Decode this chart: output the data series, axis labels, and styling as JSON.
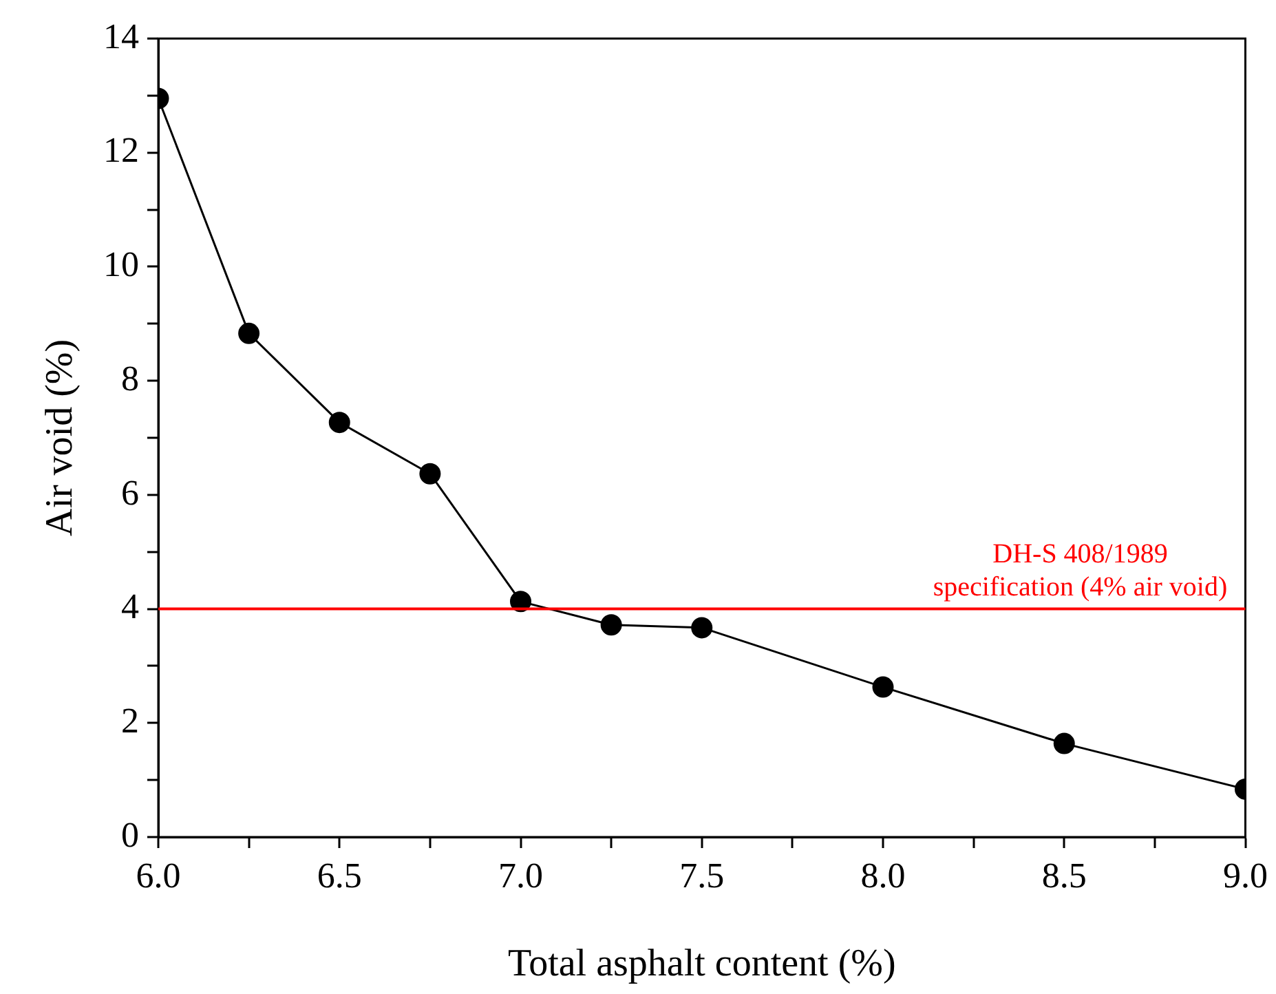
{
  "chart_data": {
    "type": "line",
    "xlabel": "Total asphalt content (%)",
    "ylabel": "Air void (%)",
    "x": [
      6.0,
      6.25,
      6.5,
      6.75,
      7.0,
      7.25,
      7.5,
      8.0,
      8.5,
      9.0
    ],
    "series": [
      {
        "color": "#000000",
        "values": [
          12.95,
          8.83,
          7.27,
          6.37,
          4.13,
          3.72,
          3.67,
          2.63,
          1.64,
          0.84
        ]
      }
    ],
    "xlim": [
      6.0,
      9.0
    ],
    "xticks": [
      {
        "value": 6,
        "label": "6.0"
      },
      {
        "value": 6.25,
        "label": null
      },
      {
        "value": 6.5,
        "label": "6.5"
      },
      {
        "value": 6.75,
        "label": null
      },
      {
        "value": 7,
        "label": "7.0"
      },
      {
        "value": 7.25,
        "label": null
      },
      {
        "value": 7.5,
        "label": "7.5"
      },
      {
        "value": 7.75,
        "label": null
      },
      {
        "value": 8,
        "label": "8.0"
      },
      {
        "value": 8.25,
        "label": null
      },
      {
        "value": 8.5,
        "label": "8.5"
      },
      {
        "value": 8.75,
        "label": null
      },
      {
        "value": 9,
        "label": "9.0"
      }
    ],
    "ylim": [
      0,
      14
    ],
    "yticks": [
      0,
      {
        "value": 1,
        "label": null
      },
      2,
      {
        "value": 3,
        "label": null
      },
      4,
      {
        "value": 5,
        "label": null
      },
      6,
      {
        "value": 7,
        "label": null
      },
      8,
      {
        "value": 9,
        "label": null
      },
      10,
      {
        "value": 11,
        "label": null
      },
      12,
      {
        "value": 13,
        "label": null
      },
      14
    ],
    "ref_lines": [
      {
        "axis": "y",
        "value": 4,
        "label": "DH-S 408/1989\nspecification (4% air void)",
        "color": "#ff0000"
      }
    ],
    "marker": "circle",
    "line_style": "solid",
    "grid": false,
    "legend": false
  }
}
